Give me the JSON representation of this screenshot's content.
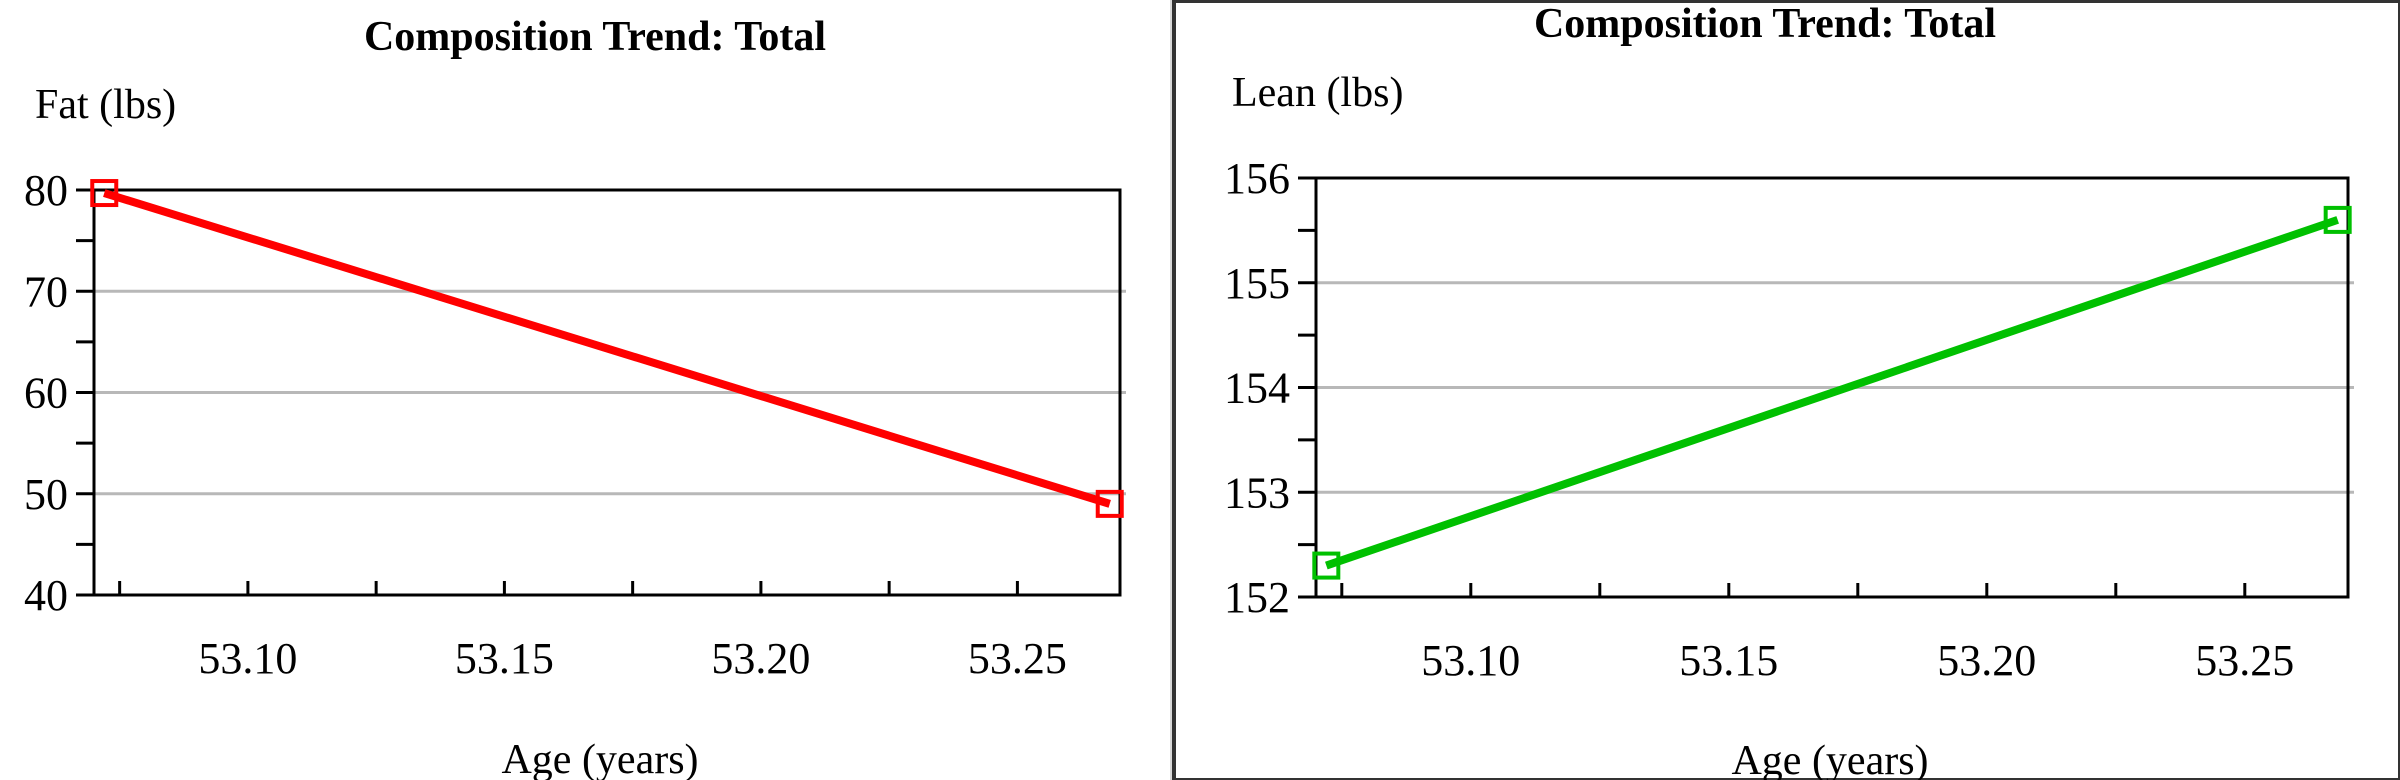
{
  "chart_data": [
    {
      "type": "line",
      "title": "Composition Trend: Total",
      "ylabel": "Fat (lbs)",
      "xlabel": "Age (years)",
      "xlim": [
        53.07,
        53.27
      ],
      "ylim": [
        40,
        80
      ],
      "x_ticks": [
        "53.10",
        "53.15",
        "53.20",
        "53.25"
      ],
      "y_ticks": [
        "40",
        "50",
        "60",
        "70",
        "80"
      ],
      "grid": true,
      "marker": "square",
      "series": [
        {
          "color": "#ff0000",
          "x": [
            53.072,
            53.268
          ],
          "y": [
            79.7,
            49.0
          ]
        }
      ]
    },
    {
      "type": "line",
      "title": "Composition Trend: Total",
      "ylabel": "Lean (lbs)",
      "xlabel": "Age (years)",
      "xlim": [
        53.07,
        53.27
      ],
      "ylim": [
        152,
        156
      ],
      "x_ticks": [
        "53.10",
        "53.15",
        "53.20",
        "53.25"
      ],
      "y_ticks": [
        "152",
        "153",
        "154",
        "155",
        "156"
      ],
      "grid": true,
      "marker": "square",
      "series": [
        {
          "color": "#00c000",
          "x": [
            53.072,
            53.268
          ],
          "y": [
            152.3,
            155.6
          ]
        }
      ]
    }
  ]
}
